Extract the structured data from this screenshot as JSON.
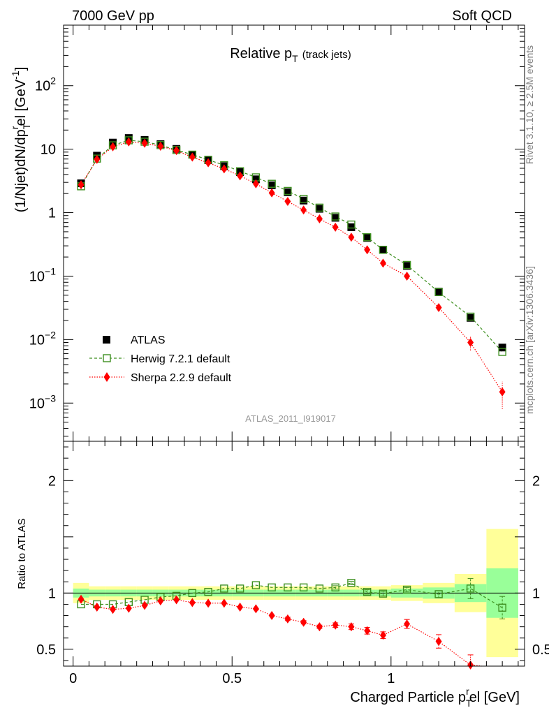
{
  "header": {
    "left": "7000 GeV pp",
    "right": "Soft QCD"
  },
  "side_labels": {
    "rivet": "Rivet 3.1.10, ≥ 2.5M events",
    "mcplots": "mcplots.cern.ch [arXiv:1306.3436]"
  },
  "colors": {
    "atlas": "#000000",
    "herwig": "#3d8f1f",
    "sherpa": "#ff0000",
    "band_green": "#99ff99",
    "band_yellow": "#ffff99"
  },
  "chart_data": [
    {
      "type": "scatter",
      "title": "Relative p_T (track jets)",
      "title_parts": {
        "main": "Relative p",
        "sub": "T",
        "suffix": "(track jets)"
      },
      "watermark": "ATLAS_2011_I919017",
      "ylabel": "(1/Njet)dN/dp_T^rel [GeV^-1]",
      "ylabel_parts": {
        "a": "(1/Njet)dN/dp",
        "sub": "T",
        "sup": "r",
        "b": "el [GeV",
        "unit_sup": "-1",
        "c": "]"
      },
      "yscale": "log",
      "ylim": [
        0.00025,
        900
      ],
      "xlim": [
        -0.03,
        1.42
      ],
      "yticks": [
        {
          "v": 0.001,
          "base": "10",
          "exp": "−3"
        },
        {
          "v": 0.01,
          "base": "10",
          "exp": "−2"
        },
        {
          "v": 0.1,
          "base": "10",
          "exp": "−1"
        },
        {
          "v": 1,
          "base": "1",
          "exp": ""
        },
        {
          "v": 10,
          "base": "10",
          "exp": ""
        },
        {
          "v": 100,
          "base": "10",
          "exp": "2"
        }
      ],
      "legend": {
        "position": "bottom-left",
        "entries": [
          "ATLAS",
          "Herwig 7.2.1 default",
          "Sherpa 2.2.9 default"
        ]
      },
      "x": [
        0.025,
        0.075,
        0.125,
        0.175,
        0.225,
        0.275,
        0.325,
        0.375,
        0.425,
        0.475,
        0.525,
        0.575,
        0.625,
        0.675,
        0.725,
        0.775,
        0.825,
        0.875,
        0.925,
        0.975,
        1.05,
        1.15,
        1.25,
        1.35
      ],
      "series": [
        {
          "name": "ATLAS",
          "values": [
            2.9,
            7.9,
            12.7,
            15.0,
            14.0,
            12.0,
            10.1,
            8.2,
            6.7,
            5.4,
            4.35,
            3.35,
            2.7,
            2.1,
            1.55,
            1.15,
            0.83,
            0.59,
            0.4,
            0.26,
            0.145,
            0.057,
            0.022,
            0.0075
          ]
        },
        {
          "name": "Herwig 7.2.1 default",
          "values": [
            2.6,
            7.1,
            11.5,
            13.8,
            13.1,
            11.6,
            9.7,
            8.2,
            6.8,
            5.6,
            4.5,
            3.6,
            2.85,
            2.2,
            1.65,
            1.2,
            0.87,
            0.65,
            0.41,
            0.26,
            0.15,
            0.056,
            0.023,
            0.0064
          ]
        },
        {
          "name": "Sherpa 2.2.9 default",
          "values": [
            2.75,
            6.9,
            10.9,
            13.0,
            12.4,
            11.1,
            9.5,
            7.5,
            6.1,
            4.9,
            3.8,
            2.85,
            2.05,
            1.5,
            1.1,
            0.8,
            0.59,
            0.41,
            0.26,
            0.16,
            0.1,
            0.032,
            0.009,
            0.0015
          ]
        }
      ]
    },
    {
      "type": "scatter",
      "ylabel": "Ratio to ATLAS",
      "xlabel": "Charged Particle p_T^rel [GeV]",
      "xlabel_parts": {
        "a": "Charged Particle p",
        "sub": "T",
        "sup": "r",
        "b": "el [GeV]"
      },
      "ylim": [
        0.35,
        2.35
      ],
      "xlim": [
        -0.03,
        1.42
      ],
      "yticks": [
        {
          "v": 0.5,
          "label": "0.5"
        },
        {
          "v": 1,
          "label": "1"
        },
        {
          "v": 2,
          "label": "2"
        }
      ],
      "xticks": [
        {
          "v": 0,
          "label": "0"
        },
        {
          "v": 0.5,
          "label": "0.5"
        },
        {
          "v": 1,
          "label": "1"
        }
      ],
      "x_edges": [
        0,
        0.05,
        0.1,
        0.15,
        0.2,
        0.25,
        0.3,
        0.35,
        0.4,
        0.45,
        0.5,
        0.55,
        0.6,
        0.65,
        0.7,
        0.75,
        0.8,
        0.85,
        0.9,
        0.95,
        1.0,
        1.1,
        1.2,
        1.3,
        1.4
      ],
      "band_stat": [
        0.04,
        0.03,
        0.03,
        0.03,
        0.03,
        0.03,
        0.03,
        0.03,
        0.03,
        0.03,
        0.03,
        0.03,
        0.03,
        0.03,
        0.03,
        0.03,
        0.03,
        0.03,
        0.03,
        0.03,
        0.04,
        0.05,
        0.08,
        0.22
      ],
      "band_syst": [
        0.09,
        0.06,
        0.06,
        0.06,
        0.06,
        0.06,
        0.06,
        0.06,
        0.06,
        0.06,
        0.06,
        0.06,
        0.06,
        0.06,
        0.06,
        0.06,
        0.06,
        0.06,
        0.06,
        0.06,
        0.07,
        0.09,
        0.17,
        0.57
      ],
      "series": [
        {
          "name": "Herwig 7.2.1 default",
          "values": [
            0.9,
            0.9,
            0.9,
            0.92,
            0.94,
            0.965,
            0.975,
            1.0,
            1.01,
            1.04,
            1.04,
            1.07,
            1.05,
            1.05,
            1.05,
            1.04,
            1.05,
            1.09,
            1.01,
            0.995,
            1.03,
            0.99,
            1.04,
            0.87
          ],
          "errors": [
            0.01,
            0.01,
            0.01,
            0.01,
            0.01,
            0.01,
            0.01,
            0.01,
            0.01,
            0.01,
            0.01,
            0.01,
            0.01,
            0.01,
            0.01,
            0.01,
            0.015,
            0.015,
            0.02,
            0.02,
            0.02,
            0.03,
            0.09,
            0.1
          ]
        },
        {
          "name": "Sherpa 2.2.9 default",
          "values": [
            0.945,
            0.875,
            0.855,
            0.865,
            0.89,
            0.93,
            0.94,
            0.915,
            0.91,
            0.91,
            0.875,
            0.86,
            0.8,
            0.77,
            0.74,
            0.7,
            0.715,
            0.7,
            0.665,
            0.625,
            0.725,
            0.57,
            0.36
          ],
          "errors": [
            0.01,
            0.01,
            0.01,
            0.01,
            0.01,
            0.01,
            0.01,
            0.01,
            0.01,
            0.01,
            0.01,
            0.01,
            0.01,
            0.015,
            0.015,
            0.015,
            0.02,
            0.025,
            0.03,
            0.03,
            0.04,
            0.06,
            0.09
          ]
        }
      ]
    }
  ]
}
